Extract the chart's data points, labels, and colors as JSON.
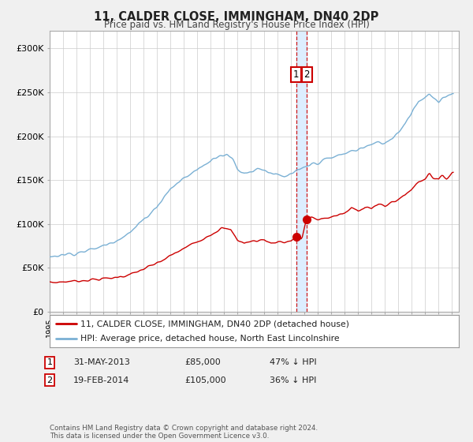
{
  "title": "11, CALDER CLOSE, IMMINGHAM, DN40 2DP",
  "subtitle": "Price paid vs. HM Land Registry's House Price Index (HPI)",
  "legend_line1": "11, CALDER CLOSE, IMMINGHAM, DN40 2DP (detached house)",
  "legend_line2": "HPI: Average price, detached house, North East Lincolnshire",
  "red_line_color": "#cc0000",
  "blue_line_color": "#7ab0d4",
  "annotation_box_color": "#cc0000",
  "vband_color": "#ddeeff",
  "vline_color": "#cc0000",
  "transaction1_date": "31-MAY-2013",
  "transaction1_price": "£85,000",
  "transaction1_hpi": "47% ↓ HPI",
  "transaction1_year": 2013.42,
  "transaction1_val": 85000,
  "transaction2_date": "19-FEB-2014",
  "transaction2_price": "£105,000",
  "transaction2_hpi": "36% ↓ HPI",
  "transaction2_year": 2014.13,
  "transaction2_val": 105000,
  "footer": "Contains HM Land Registry data © Crown copyright and database right 2024.\nThis data is licensed under the Open Government Licence v3.0.",
  "ylim": [
    0,
    320000
  ],
  "yticks": [
    0,
    50000,
    100000,
    150000,
    200000,
    250000,
    300000
  ],
  "ytick_labels": [
    "£0",
    "£50K",
    "£100K",
    "£150K",
    "£200K",
    "£250K",
    "£300K"
  ],
  "xlim_left": 1995,
  "xlim_right": 2025.5,
  "background_color": "#f0f0f0",
  "plot_bg_color": "#ffffff",
  "grid_color": "#cccccc"
}
